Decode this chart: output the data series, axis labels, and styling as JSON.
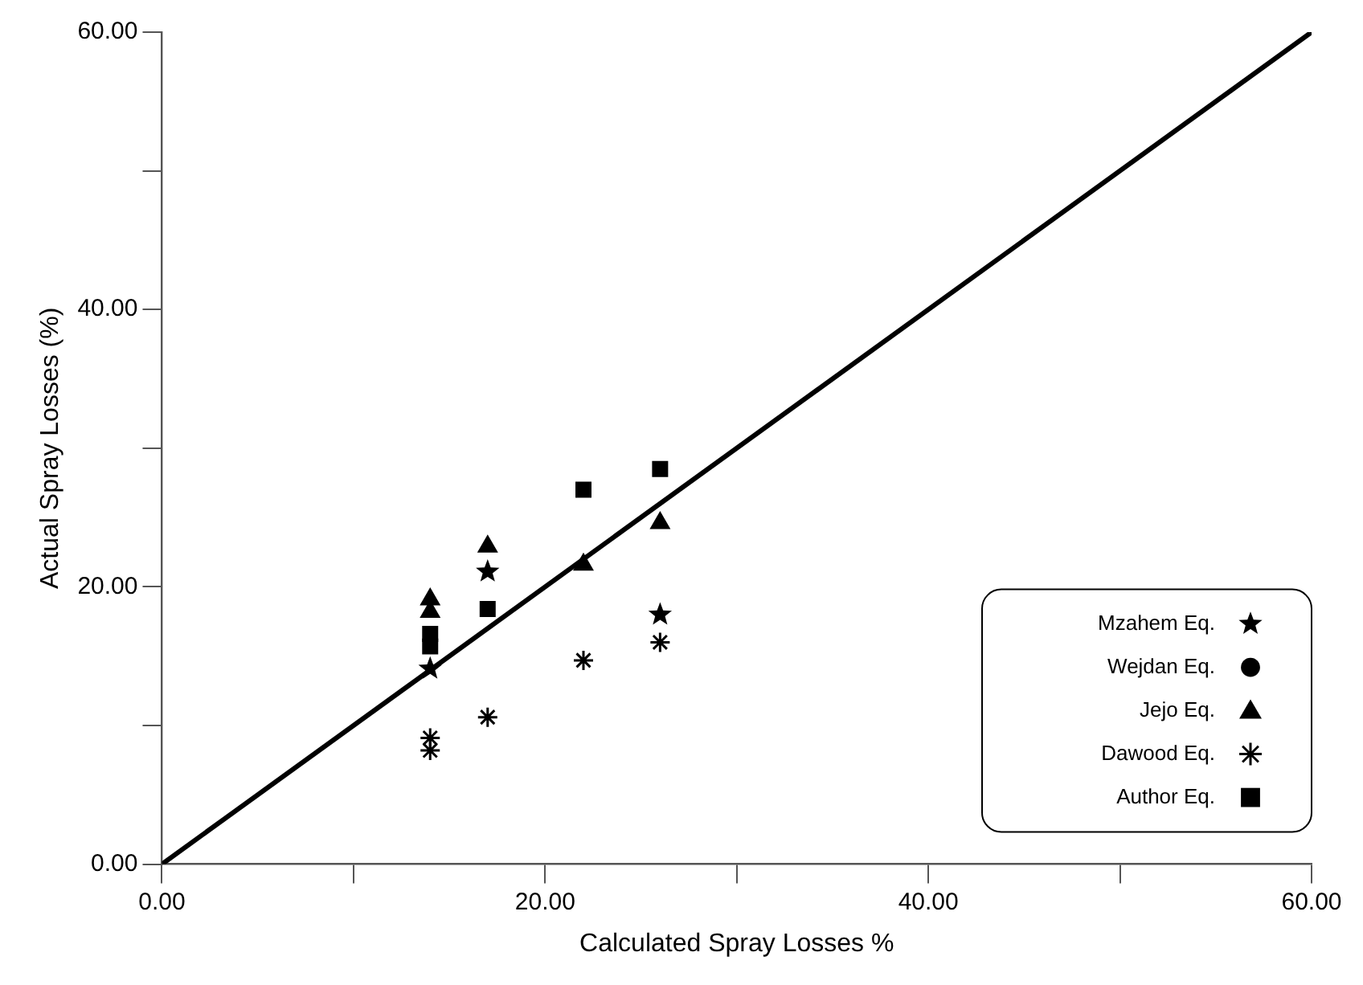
{
  "chart_data": {
    "type": "scatter",
    "xlabel": "Calculated Spray Losses %",
    "ylabel": "Actual Spray Losses (%)",
    "xlim": [
      0,
      60
    ],
    "ylim": [
      0,
      60
    ],
    "xticks": [
      {
        "value": 0,
        "label": "0.00"
      },
      {
        "value": 10,
        "label": null
      },
      {
        "value": 20,
        "label": "20.00"
      },
      {
        "value": 30,
        "label": null
      },
      {
        "value": 40,
        "label": "40.00"
      },
      {
        "value": 50,
        "label": null
      },
      {
        "value": 60,
        "label": "60.00"
      }
    ],
    "yticks": [
      {
        "value": 0,
        "label": "0.00"
      },
      {
        "value": 10,
        "label": null
      },
      {
        "value": 20,
        "label": "20.00"
      },
      {
        "value": 30,
        "label": null
      },
      {
        "value": 40,
        "label": "40.00"
      },
      {
        "value": 50,
        "label": null
      },
      {
        "value": 60,
        "label": "60.00"
      }
    ],
    "grid": false,
    "legend": "bottom right",
    "series": [
      {
        "name": "Mzahem Eq.",
        "color": "#000000",
        "marker": "star",
        "x": [
          14,
          17,
          26
        ],
        "values": [
          14.1,
          21.1,
          18.0
        ]
      },
      {
        "name": "Wejdan Eq.",
        "color": "#000000",
        "marker": "circle"
      },
      {
        "name": "Jejo Eq.",
        "color": "#000000",
        "marker": "triangle",
        "x": [
          14,
          14,
          17,
          22,
          26
        ],
        "values": [
          19.1,
          18.2,
          22.9,
          21.6,
          24.6
        ]
      },
      {
        "name": "Dawood Eq.",
        "color": "#000000",
        "marker": "cross",
        "x": [
          14,
          14,
          17,
          22,
          26
        ],
        "values": [
          9.1,
          8.2,
          10.6,
          14.7,
          16.0
        ]
      },
      {
        "name": "Author Eq.",
        "color": "#000000",
        "marker": "square",
        "x": [
          14,
          14,
          17,
          22,
          26
        ],
        "values": [
          16.6,
          15.7,
          18.4,
          27.0,
          28.5
        ]
      },
      {
        "type": "line",
        "color": "#000000",
        "marker": "none",
        "line_style": "solid",
        "x": [
          0,
          60
        ],
        "values": [
          0,
          60
        ]
      }
    ]
  }
}
